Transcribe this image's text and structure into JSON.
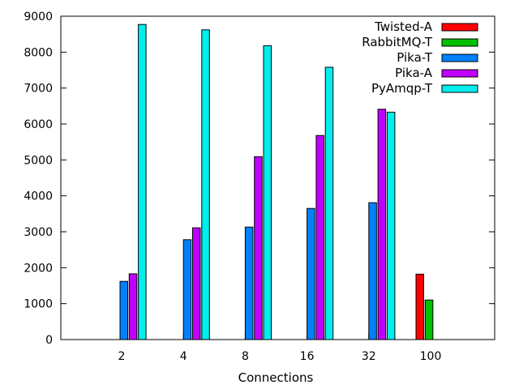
{
  "chart_data": {
    "type": "bar",
    "title": "",
    "xlabel": "Connections",
    "ylabel": "",
    "categories": [
      "2",
      "4",
      "8",
      "16",
      "32",
      "100"
    ],
    "ylim": [
      0,
      9000
    ],
    "yticks": [
      0,
      1000,
      2000,
      3000,
      4000,
      5000,
      6000,
      7000,
      8000,
      9000
    ],
    "grid": false,
    "legend_position": "top-right",
    "series": [
      {
        "name": "Twisted-A",
        "color": "#ff0000",
        "values": [
          null,
          null,
          null,
          null,
          null,
          1820
        ]
      },
      {
        "name": "RabbitMQ-T",
        "color": "#00c000",
        "values": [
          null,
          null,
          null,
          null,
          null,
          1100
        ]
      },
      {
        "name": "Pika-T",
        "color": "#0080ff",
        "values": [
          1620,
          2780,
          3130,
          3650,
          3810,
          null
        ]
      },
      {
        "name": "Pika-A",
        "color": "#c000ff",
        "values": [
          1830,
          3110,
          5090,
          5680,
          6410,
          null
        ]
      },
      {
        "name": "PyAmqp-T",
        "color": "#00eeee",
        "values": [
          8770,
          8620,
          8180,
          7580,
          6330,
          null
        ]
      }
    ]
  }
}
